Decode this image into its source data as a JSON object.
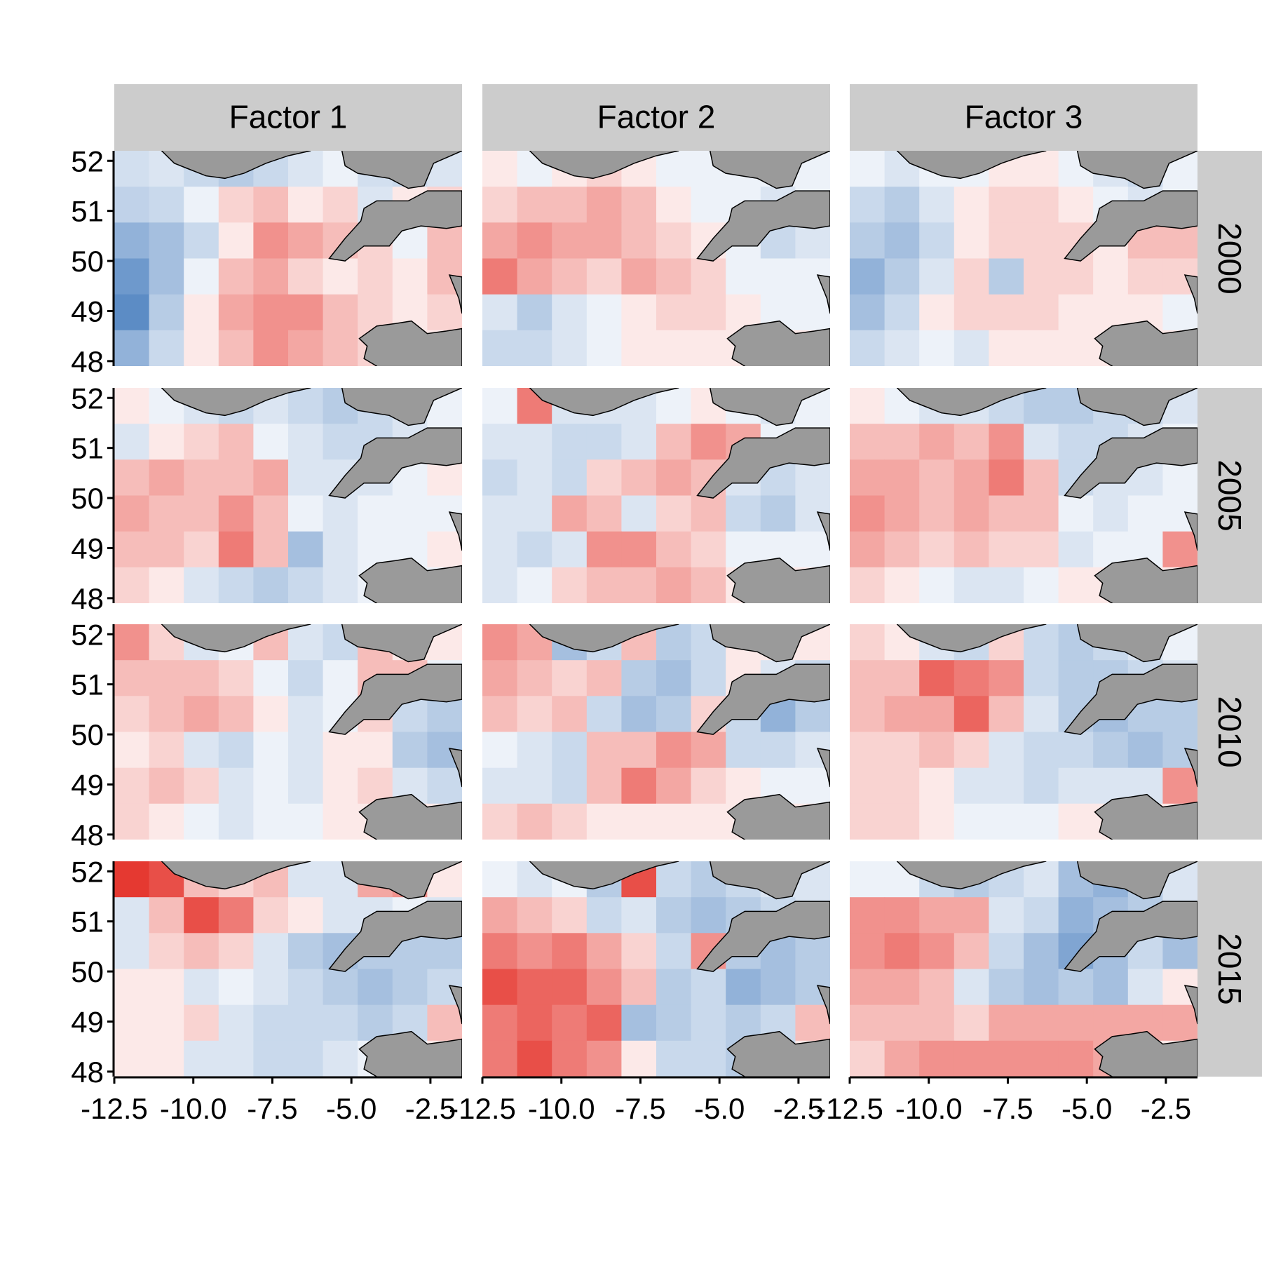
{
  "chart_data": {
    "type": "heatmap",
    "description_free": true,
    "column_facets": [
      "Factor 1",
      "Factor 2",
      "Factor 3"
    ],
    "row_facets": [
      "2000",
      "2005",
      "2010",
      "2015"
    ],
    "x_ticks": [
      "-12.5",
      "-10.0",
      "-7.5",
      "-5.0",
      "-2.5"
    ],
    "y_ticks": [
      "52",
      "51",
      "50",
      "49",
      "48"
    ],
    "xlim": [
      -12.5,
      -1.5
    ],
    "ylim": [
      47.9,
      52.2
    ],
    "grid": false,
    "legend": "none",
    "colors": {
      "negative": "#4a7fbf",
      "neutral": "#ffffff",
      "positive": "#e2231a",
      "land": "#9a9a9a",
      "strip": "#cccccc",
      "axis": "#000000"
    },
    "panels": [
      [
        {
          "factor": "Factor 1",
          "year": "2000",
          "values": [
            -0.25,
            -0.2,
            -0.3,
            -0.4,
            -0.3,
            -0.2,
            -0.1,
            -0.25,
            -0.3,
            -0.2,
            -0.35,
            -0.3,
            -0.1,
            0.2,
            0.3,
            0.1,
            0.2,
            -0.2,
            0.1,
            0.2,
            -0.6,
            -0.5,
            -0.3,
            0.1,
            0.5,
            0.4,
            0.3,
            0.2,
            -0.1,
            0.3,
            -0.8,
            -0.5,
            -0.1,
            0.3,
            0.4,
            0.2,
            0.1,
            0.2,
            0.1,
            0.3,
            -0.9,
            -0.4,
            0.1,
            0.4,
            0.5,
            0.5,
            0.3,
            0.2,
            0.1,
            0.2,
            -0.6,
            -0.3,
            0.1,
            0.3,
            0.5,
            0.4,
            0.3,
            0.2,
            0.1,
            0.1
          ]
        },
        {
          "factor": "Factor 2",
          "year": "2000",
          "values": [
            0.1,
            -0.1,
            0.1,
            0.2,
            0.1,
            -0.1,
            -0.1,
            -0.1,
            -0.1,
            -0.1,
            0.2,
            0.3,
            0.3,
            0.4,
            0.3,
            0.1,
            -0.1,
            -0.1,
            -0.2,
            -0.1,
            0.4,
            0.5,
            0.4,
            0.4,
            0.3,
            0.2,
            0.1,
            -0.1,
            -0.3,
            -0.2,
            0.6,
            0.4,
            0.3,
            0.2,
            0.4,
            0.3,
            0.2,
            -0.1,
            -0.1,
            -0.1,
            -0.2,
            -0.4,
            -0.2,
            -0.1,
            0.1,
            0.2,
            0.2,
            0.1,
            -0.1,
            -0.1,
            -0.3,
            -0.3,
            -0.2,
            -0.1,
            0.1,
            0.1,
            0.1,
            0.1,
            0.1,
            0.1
          ]
        },
        {
          "factor": "Factor 3",
          "year": "2000",
          "values": [
            -0.1,
            -0.2,
            -0.1,
            -0.1,
            0.1,
            0.1,
            -0.1,
            -0.2,
            -0.3,
            -0.1,
            -0.3,
            -0.4,
            -0.2,
            0.1,
            0.2,
            0.2,
            0.1,
            -0.1,
            -0.2,
            -0.1,
            -0.4,
            -0.5,
            -0.3,
            0.1,
            0.2,
            0.2,
            0.2,
            0.1,
            0.3,
            0.3,
            -0.6,
            -0.4,
            -0.2,
            0.2,
            -0.4,
            0.2,
            0.2,
            0.1,
            0.2,
            0.2,
            -0.5,
            -0.3,
            0.1,
            0.2,
            0.2,
            0.2,
            0.1,
            0.1,
            0.1,
            -0.1,
            -0.3,
            -0.2,
            -0.1,
            -0.2,
            0.1,
            0.1,
            0.1,
            0.1,
            0.1,
            0.1
          ]
        }
      ],
      [
        {
          "factor": "Factor 1",
          "year": "2005",
          "values": [
            0.1,
            -0.1,
            -0.2,
            -0.3,
            -0.2,
            -0.3,
            -0.4,
            -0.3,
            -0.2,
            -0.1,
            -0.2,
            0.1,
            0.2,
            0.3,
            -0.1,
            -0.2,
            -0.3,
            -0.3,
            -0.2,
            -0.1,
            0.3,
            0.4,
            0.3,
            0.3,
            0.4,
            -0.2,
            -0.2,
            -0.2,
            -0.1,
            0.1,
            0.4,
            0.3,
            0.3,
            0.5,
            0.3,
            -0.1,
            -0.2,
            -0.1,
            -0.1,
            -0.1,
            0.3,
            0.3,
            0.2,
            0.6,
            0.3,
            -0.5,
            -0.2,
            -0.1,
            -0.1,
            0.1,
            0.2,
            0.1,
            -0.2,
            -0.3,
            -0.4,
            -0.3,
            -0.2,
            -0.1,
            -0.1,
            -0.1
          ]
        },
        {
          "factor": "Factor 2",
          "year": "2005",
          "values": [
            -0.1,
            0.6,
            -0.2,
            -0.2,
            -0.2,
            -0.1,
            0.1,
            -0.1,
            -0.2,
            -0.1,
            -0.2,
            -0.2,
            -0.3,
            -0.3,
            -0.2,
            0.3,
            0.5,
            0.4,
            -0.1,
            -0.1,
            -0.3,
            -0.2,
            -0.3,
            0.2,
            0.3,
            0.4,
            0.3,
            -0.2,
            -0.3,
            -0.2,
            -0.2,
            -0.2,
            0.4,
            0.3,
            -0.2,
            0.2,
            0.3,
            -0.3,
            -0.4,
            -0.2,
            -0.2,
            -0.3,
            -0.2,
            0.5,
            0.5,
            0.3,
            0.2,
            -0.1,
            -0.1,
            -0.1,
            -0.2,
            -0.1,
            0.2,
            0.3,
            0.3,
            0.4,
            0.3,
            0.1,
            0.1,
            0.1
          ]
        },
        {
          "factor": "Factor 3",
          "year": "2005",
          "values": [
            0.1,
            -0.1,
            -0.2,
            -0.2,
            -0.3,
            -0.4,
            -0.4,
            -0.3,
            -0.3,
            -0.2,
            0.3,
            0.3,
            0.4,
            0.3,
            0.5,
            -0.2,
            -0.3,
            -0.3,
            -0.2,
            -0.1,
            0.4,
            0.4,
            0.3,
            0.4,
            0.6,
            0.3,
            -0.3,
            -0.2,
            -0.2,
            -0.1,
            0.5,
            0.4,
            0.3,
            0.4,
            0.3,
            0.3,
            -0.1,
            -0.2,
            -0.1,
            -0.1,
            0.4,
            0.3,
            0.2,
            0.3,
            0.2,
            0.2,
            -0.2,
            -0.1,
            -0.1,
            0.5,
            0.2,
            0.1,
            -0.1,
            -0.2,
            -0.2,
            -0.1,
            0.1,
            0.1,
            0.1,
            0.1
          ]
        }
      ],
      [
        {
          "factor": "Factor 1",
          "year": "2010",
          "values": [
            0.5,
            0.2,
            -0.2,
            -0.1,
            0.3,
            -0.2,
            -0.3,
            0.3,
            0.1,
            0.1,
            0.3,
            0.3,
            0.3,
            0.2,
            -0.1,
            -0.3,
            -0.1,
            0.3,
            0.3,
            -0.1,
            0.2,
            0.3,
            0.4,
            0.3,
            0.1,
            -0.2,
            -0.1,
            0.2,
            -0.3,
            -0.4,
            0.1,
            0.2,
            -0.2,
            -0.3,
            -0.1,
            -0.2,
            0.1,
            0.1,
            -0.4,
            -0.5,
            0.2,
            0.3,
            0.2,
            -0.2,
            -0.1,
            -0.2,
            0.1,
            0.2,
            -0.2,
            -0.3,
            0.2,
            0.1,
            -0.1,
            -0.2,
            -0.1,
            -0.1,
            0.1,
            0.1,
            0.1,
            0.1
          ]
        },
        {
          "factor": "Factor 2",
          "year": "2010",
          "values": [
            0.5,
            0.4,
            -0.5,
            -0.3,
            0.3,
            -0.4,
            -0.3,
            0.1,
            0.1,
            0.1,
            0.4,
            0.3,
            0.2,
            0.3,
            -0.4,
            -0.5,
            -0.3,
            0.1,
            -0.2,
            -0.3,
            0.3,
            0.2,
            0.3,
            -0.3,
            -0.5,
            -0.4,
            0.2,
            -0.3,
            -0.6,
            -0.4,
            -0.1,
            -0.2,
            -0.3,
            0.3,
            0.3,
            0.5,
            0.4,
            -0.3,
            -0.3,
            -0.2,
            -0.2,
            -0.2,
            -0.3,
            0.3,
            0.6,
            0.4,
            0.2,
            0.1,
            -0.1,
            -0.1,
            0.2,
            0.3,
            0.2,
            0.1,
            0.1,
            0.1,
            0.1,
            0.1,
            0.1,
            0.1
          ]
        },
        {
          "factor": "Factor 3",
          "year": "2010",
          "values": [
            0.2,
            0.1,
            -0.2,
            -0.3,
            0.2,
            -0.3,
            -0.4,
            -0.3,
            -0.2,
            -0.1,
            0.3,
            0.3,
            0.7,
            0.6,
            0.5,
            -0.3,
            -0.4,
            -0.4,
            -0.3,
            -0.2,
            0.3,
            0.4,
            0.4,
            0.7,
            0.3,
            -0.2,
            -0.4,
            -0.5,
            -0.4,
            -0.4,
            0.2,
            0.2,
            0.3,
            0.2,
            -0.2,
            -0.3,
            -0.3,
            -0.4,
            -0.5,
            -0.4,
            0.2,
            0.2,
            0.1,
            -0.2,
            -0.2,
            -0.3,
            -0.2,
            -0.2,
            -0.2,
            0.5,
            0.2,
            0.2,
            0.1,
            -0.1,
            -0.1,
            -0.1,
            0.1,
            0.1,
            0.1,
            0.1
          ]
        }
      ],
      [
        {
          "factor": "Factor 1",
          "year": "2015",
          "values": [
            0.9,
            0.8,
            0.3,
            0.2,
            0.3,
            -0.2,
            -0.2,
            0.4,
            0.5,
            0.1,
            -0.2,
            0.3,
            0.8,
            0.6,
            0.2,
            0.1,
            -0.2,
            -0.2,
            -0.1,
            -0.2,
            -0.2,
            0.2,
            0.3,
            0.2,
            -0.2,
            -0.4,
            -0.5,
            -0.4,
            -0.4,
            -0.4,
            0.1,
            0.1,
            -0.2,
            -0.1,
            -0.2,
            -0.3,
            -0.4,
            -0.5,
            -0.4,
            -0.3,
            0.1,
            0.1,
            0.2,
            -0.2,
            -0.3,
            -0.3,
            -0.3,
            -0.4,
            -0.3,
            0.3,
            0.1,
            0.1,
            -0.2,
            -0.2,
            -0.3,
            -0.3,
            -0.2,
            -0.1,
            -0.1,
            0.1
          ]
        },
        {
          "factor": "Factor 2",
          "year": "2015",
          "values": [
            -0.1,
            -0.2,
            -0.1,
            -0.4,
            0.8,
            -0.3,
            -0.4,
            -0.3,
            -0.2,
            -0.2,
            0.4,
            0.3,
            0.2,
            -0.3,
            -0.2,
            -0.4,
            -0.5,
            -0.4,
            -0.3,
            -0.2,
            0.6,
            0.5,
            0.6,
            0.4,
            0.2,
            -0.3,
            0.5,
            -0.4,
            -0.5,
            -0.4,
            0.8,
            0.7,
            0.7,
            0.5,
            0.3,
            -0.4,
            -0.3,
            -0.6,
            -0.5,
            -0.4,
            0.6,
            0.7,
            0.6,
            0.7,
            -0.5,
            -0.4,
            -0.3,
            -0.4,
            -0.3,
            0.3,
            0.6,
            0.8,
            0.6,
            0.5,
            0.1,
            -0.3,
            -0.3,
            -0.4,
            -0.3,
            0.1
          ]
        },
        {
          "factor": "Factor 3",
          "year": "2015",
          "values": [
            -0.1,
            -0.1,
            -0.3,
            -0.4,
            -0.3,
            -0.2,
            -0.5,
            -0.6,
            -0.4,
            -0.2,
            0.5,
            0.5,
            0.4,
            0.4,
            -0.2,
            -0.3,
            -0.6,
            -0.5,
            -0.4,
            -0.2,
            0.5,
            0.6,
            0.5,
            0.3,
            -0.3,
            -0.5,
            -0.7,
            -0.5,
            -0.3,
            -0.5,
            0.4,
            0.4,
            0.3,
            -0.2,
            -0.4,
            -0.5,
            -0.4,
            -0.5,
            -0.2,
            0.1,
            0.3,
            0.3,
            0.3,
            0.2,
            0.4,
            0.4,
            0.4,
            0.4,
            0.4,
            0.4,
            0.2,
            0.4,
            0.5,
            0.5,
            0.5,
            0.5,
            0.5,
            0.4,
            0.1,
            0.1
          ]
        }
      ]
    ]
  }
}
